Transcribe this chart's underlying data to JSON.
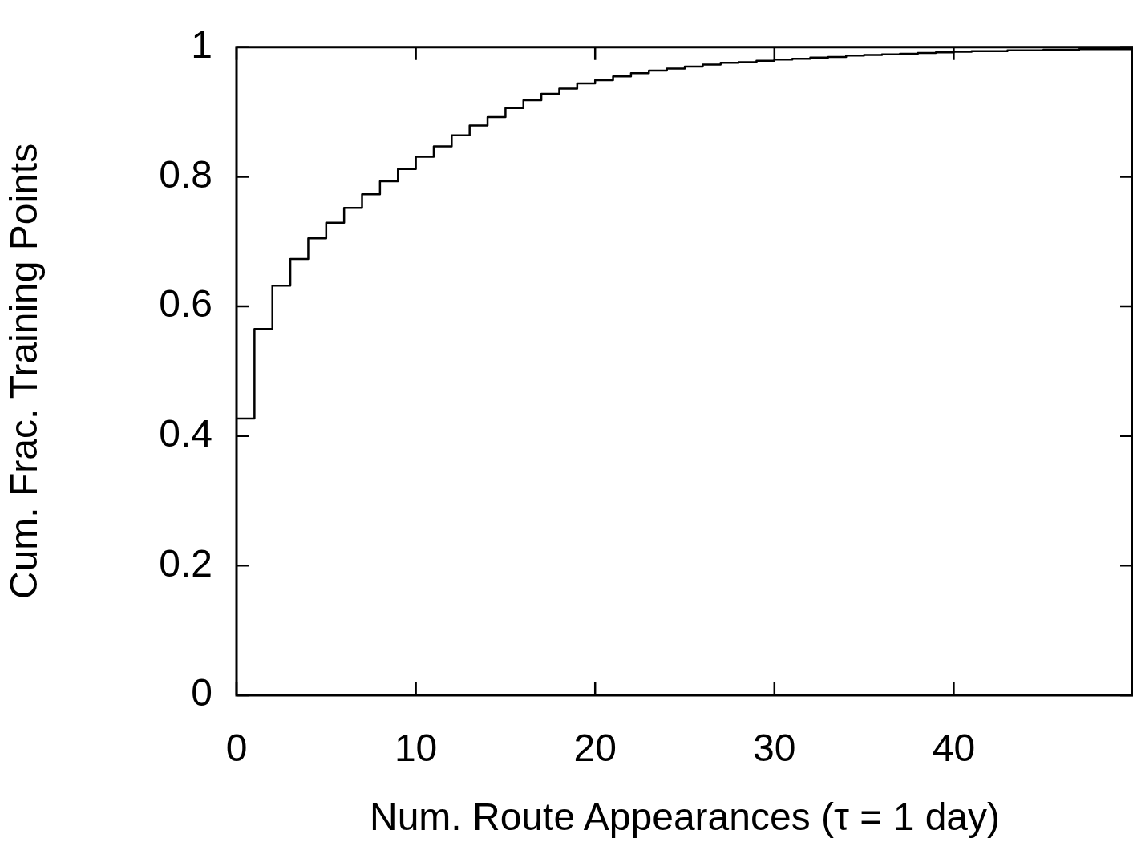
{
  "chart_data": {
    "type": "step",
    "xlabel": "Num. Route Appearances (τ = 1 day)",
    "ylabel": "Cum. Frac. Training Points",
    "x": [
      0,
      1,
      2,
      3,
      4,
      5,
      6,
      7,
      8,
      9,
      10,
      11,
      12,
      13,
      14,
      15,
      16,
      17,
      18,
      19,
      20,
      21,
      22,
      23,
      24,
      25,
      26,
      27,
      28,
      29,
      30,
      31,
      32,
      33,
      34,
      35,
      36,
      37,
      38,
      39,
      40,
      41,
      42,
      43,
      44,
      45,
      46,
      47,
      48,
      49,
      50
    ],
    "series": [
      {
        "color": "#000000",
        "values": [
          0.427,
          0.565,
          0.632,
          0.673,
          0.705,
          0.729,
          0.752,
          0.773,
          0.793,
          0.812,
          0.831,
          0.847,
          0.864,
          0.879,
          0.892,
          0.906,
          0.918,
          0.928,
          0.936,
          0.944,
          0.949,
          0.955,
          0.96,
          0.964,
          0.967,
          0.97,
          0.973,
          0.976,
          0.977,
          0.979,
          0.981,
          0.982,
          0.984,
          0.985,
          0.987,
          0.988,
          0.989,
          0.99,
          0.991,
          0.992,
          0.993,
          0.994,
          0.994,
          0.995,
          0.995,
          0.996,
          0.996,
          0.997,
          0.997,
          0.997,
          0.998
        ]
      }
    ],
    "xlim": [
      0,
      50
    ],
    "xticks": [
      0,
      10,
      20,
      30,
      40
    ],
    "ylim": [
      0,
      1
    ],
    "yticks": [
      0,
      0.2,
      0.4,
      0.6,
      0.8,
      1
    ],
    "grid": false,
    "legend": false,
    "marker": "none",
    "line_style": "solid"
  }
}
